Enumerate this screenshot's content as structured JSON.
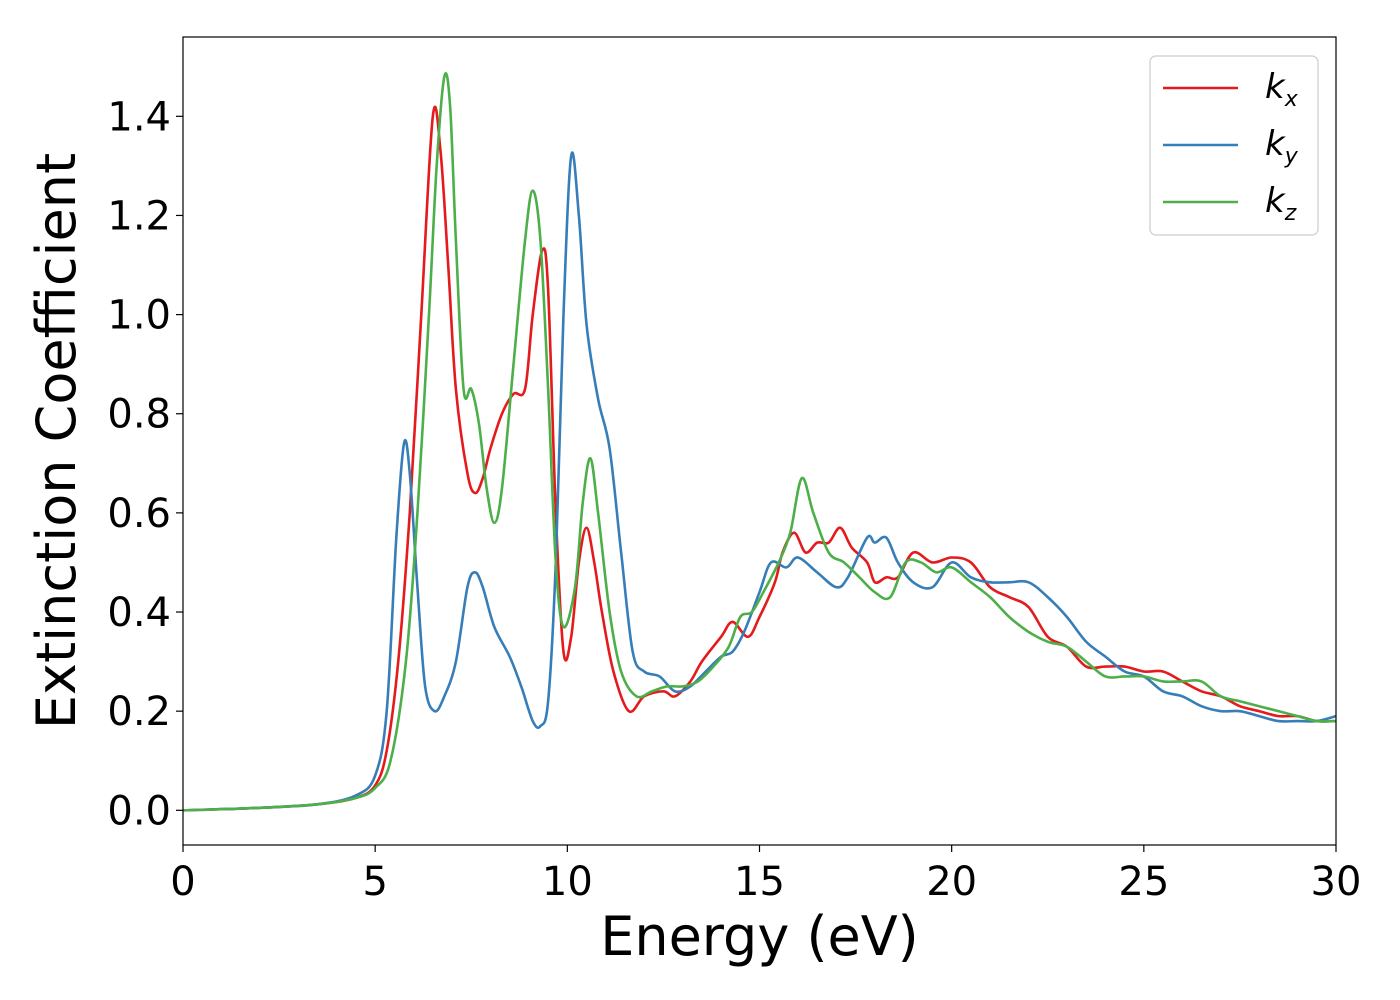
{
  "chart_data": {
    "type": "line",
    "xlabel": "Energy (eV)",
    "ylabel": "Extinction Coefficient",
    "xlim": [
      0,
      30
    ],
    "ylim": [
      -0.07,
      1.56
    ],
    "xticks": [
      0,
      5,
      10,
      15,
      20,
      25,
      30
    ],
    "xtick_labels": [
      "0",
      "5",
      "10",
      "15",
      "20",
      "25",
      "30"
    ],
    "yticks": [
      0.0,
      0.2,
      0.4,
      0.6,
      0.8,
      1.0,
      1.2,
      1.4
    ],
    "ytick_labels": [
      "0.0",
      "0.2",
      "0.4",
      "0.6",
      "0.8",
      "1.0",
      "1.2",
      "1.4"
    ],
    "grid": false,
    "legend_position": "top-right",
    "series": [
      {
        "name": "k",
        "subscript": "x",
        "color": "#e41a1c",
        "points": [
          [
            0,
            0.0
          ],
          [
            2,
            0.005
          ],
          [
            3.5,
            0.012
          ],
          [
            4.5,
            0.025
          ],
          [
            5.0,
            0.05
          ],
          [
            5.3,
            0.12
          ],
          [
            5.6,
            0.3
          ],
          [
            5.9,
            0.6
          ],
          [
            6.2,
            1.0
          ],
          [
            6.5,
            1.4
          ],
          [
            6.7,
            1.33
          ],
          [
            6.9,
            1.1
          ],
          [
            7.1,
            0.85
          ],
          [
            7.4,
            0.68
          ],
          [
            7.6,
            0.64
          ],
          [
            7.8,
            0.67
          ],
          [
            8.0,
            0.73
          ],
          [
            8.3,
            0.8
          ],
          [
            8.6,
            0.84
          ],
          [
            8.9,
            0.85
          ],
          [
            9.1,
            1.0
          ],
          [
            9.35,
            1.13
          ],
          [
            9.5,
            1.05
          ],
          [
            9.7,
            0.6
          ],
          [
            9.9,
            0.32
          ],
          [
            10.1,
            0.35
          ],
          [
            10.3,
            0.5
          ],
          [
            10.5,
            0.57
          ],
          [
            10.7,
            0.5
          ],
          [
            10.9,
            0.4
          ],
          [
            11.2,
            0.28
          ],
          [
            11.6,
            0.2
          ],
          [
            12.0,
            0.23
          ],
          [
            12.5,
            0.24
          ],
          [
            12.8,
            0.23
          ],
          [
            13.2,
            0.26
          ],
          [
            13.5,
            0.3
          ],
          [
            14.0,
            0.35
          ],
          [
            14.3,
            0.38
          ],
          [
            14.7,
            0.35
          ],
          [
            15.0,
            0.39
          ],
          [
            15.4,
            0.46
          ],
          [
            15.6,
            0.52
          ],
          [
            15.9,
            0.56
          ],
          [
            16.2,
            0.52
          ],
          [
            16.5,
            0.54
          ],
          [
            16.8,
            0.54
          ],
          [
            17.1,
            0.57
          ],
          [
            17.4,
            0.53
          ],
          [
            17.8,
            0.5
          ],
          [
            18.0,
            0.46
          ],
          [
            18.3,
            0.47
          ],
          [
            18.6,
            0.47
          ],
          [
            19.0,
            0.52
          ],
          [
            19.5,
            0.5
          ],
          [
            20.0,
            0.51
          ],
          [
            20.5,
            0.5
          ],
          [
            21.0,
            0.45
          ],
          [
            21.5,
            0.43
          ],
          [
            22.0,
            0.41
          ],
          [
            22.5,
            0.35
          ],
          [
            23.0,
            0.33
          ],
          [
            23.5,
            0.29
          ],
          [
            24.0,
            0.29
          ],
          [
            24.5,
            0.29
          ],
          [
            25.0,
            0.28
          ],
          [
            25.5,
            0.28
          ],
          [
            26.0,
            0.26
          ],
          [
            26.5,
            0.24
          ],
          [
            27.0,
            0.23
          ],
          [
            27.5,
            0.21
          ],
          [
            28.0,
            0.2
          ],
          [
            28.5,
            0.19
          ],
          [
            29.0,
            0.19
          ],
          [
            29.5,
            0.18
          ],
          [
            30.0,
            0.18
          ]
        ]
      },
      {
        "name": "k",
        "subscript": "y",
        "color": "#377eb8",
        "points": [
          [
            0,
            0.0
          ],
          [
            2,
            0.005
          ],
          [
            3.5,
            0.012
          ],
          [
            4.5,
            0.03
          ],
          [
            5.0,
            0.07
          ],
          [
            5.3,
            0.2
          ],
          [
            5.55,
            0.55
          ],
          [
            5.75,
            0.74
          ],
          [
            5.9,
            0.68
          ],
          [
            6.1,
            0.45
          ],
          [
            6.3,
            0.25
          ],
          [
            6.55,
            0.2
          ],
          [
            6.8,
            0.23
          ],
          [
            7.1,
            0.3
          ],
          [
            7.4,
            0.45
          ],
          [
            7.6,
            0.48
          ],
          [
            7.8,
            0.45
          ],
          [
            8.1,
            0.37
          ],
          [
            8.5,
            0.31
          ],
          [
            8.8,
            0.25
          ],
          [
            9.1,
            0.18
          ],
          [
            9.3,
            0.17
          ],
          [
            9.5,
            0.22
          ],
          [
            9.7,
            0.5
          ],
          [
            9.9,
            1.0
          ],
          [
            10.1,
            1.32
          ],
          [
            10.3,
            1.2
          ],
          [
            10.5,
            0.98
          ],
          [
            10.8,
            0.83
          ],
          [
            11.1,
            0.73
          ],
          [
            11.4,
            0.52
          ],
          [
            11.7,
            0.32
          ],
          [
            12.0,
            0.28
          ],
          [
            12.4,
            0.27
          ],
          [
            12.8,
            0.24
          ],
          [
            13.2,
            0.25
          ],
          [
            13.6,
            0.28
          ],
          [
            14.0,
            0.31
          ],
          [
            14.3,
            0.32
          ],
          [
            14.6,
            0.36
          ],
          [
            15.0,
            0.44
          ],
          [
            15.3,
            0.5
          ],
          [
            15.7,
            0.49
          ],
          [
            16.0,
            0.51
          ],
          [
            16.5,
            0.48
          ],
          [
            17.0,
            0.45
          ],
          [
            17.3,
            0.47
          ],
          [
            17.8,
            0.55
          ],
          [
            18.0,
            0.54
          ],
          [
            18.3,
            0.55
          ],
          [
            18.6,
            0.5
          ],
          [
            19.0,
            0.46
          ],
          [
            19.5,
            0.45
          ],
          [
            20.0,
            0.5
          ],
          [
            20.5,
            0.47
          ],
          [
            21.0,
            0.46
          ],
          [
            21.5,
            0.46
          ],
          [
            22.0,
            0.46
          ],
          [
            22.5,
            0.43
          ],
          [
            23.0,
            0.39
          ],
          [
            23.5,
            0.34
          ],
          [
            24.0,
            0.31
          ],
          [
            24.5,
            0.28
          ],
          [
            25.0,
            0.27
          ],
          [
            25.5,
            0.24
          ],
          [
            26.0,
            0.23
          ],
          [
            26.5,
            0.21
          ],
          [
            27.0,
            0.2
          ],
          [
            27.5,
            0.2
          ],
          [
            28.0,
            0.19
          ],
          [
            28.5,
            0.18
          ],
          [
            29.0,
            0.18
          ],
          [
            29.5,
            0.18
          ],
          [
            30.0,
            0.19
          ]
        ]
      },
      {
        "name": "k",
        "subscript": "z",
        "color": "#4daf4a",
        "points": [
          [
            0,
            0.0
          ],
          [
            2,
            0.005
          ],
          [
            3.5,
            0.012
          ],
          [
            4.5,
            0.025
          ],
          [
            5.0,
            0.045
          ],
          [
            5.4,
            0.1
          ],
          [
            5.8,
            0.3
          ],
          [
            6.1,
            0.6
          ],
          [
            6.4,
            1.0
          ],
          [
            6.6,
            1.3
          ],
          [
            6.8,
            1.48
          ],
          [
            6.95,
            1.42
          ],
          [
            7.1,
            1.15
          ],
          [
            7.3,
            0.85
          ],
          [
            7.5,
            0.85
          ],
          [
            7.7,
            0.78
          ],
          [
            7.9,
            0.65
          ],
          [
            8.1,
            0.58
          ],
          [
            8.3,
            0.65
          ],
          [
            8.6,
            0.9
          ],
          [
            8.9,
            1.15
          ],
          [
            9.1,
            1.25
          ],
          [
            9.3,
            1.15
          ],
          [
            9.5,
            0.85
          ],
          [
            9.7,
            0.5
          ],
          [
            9.9,
            0.37
          ],
          [
            10.2,
            0.45
          ],
          [
            10.4,
            0.62
          ],
          [
            10.6,
            0.71
          ],
          [
            10.8,
            0.6
          ],
          [
            11.1,
            0.4
          ],
          [
            11.4,
            0.28
          ],
          [
            11.8,
            0.23
          ],
          [
            12.2,
            0.24
          ],
          [
            12.6,
            0.25
          ],
          [
            13.0,
            0.25
          ],
          [
            13.4,
            0.26
          ],
          [
            13.8,
            0.29
          ],
          [
            14.2,
            0.33
          ],
          [
            14.5,
            0.39
          ],
          [
            14.8,
            0.4
          ],
          [
            15.1,
            0.44
          ],
          [
            15.5,
            0.5
          ],
          [
            15.8,
            0.56
          ],
          [
            16.1,
            0.67
          ],
          [
            16.4,
            0.6
          ],
          [
            16.8,
            0.52
          ],
          [
            17.2,
            0.5
          ],
          [
            17.6,
            0.47
          ],
          [
            18.0,
            0.44
          ],
          [
            18.4,
            0.43
          ],
          [
            18.8,
            0.5
          ],
          [
            19.2,
            0.5
          ],
          [
            19.6,
            0.48
          ],
          [
            20.0,
            0.49
          ],
          [
            20.5,
            0.46
          ],
          [
            21.0,
            0.43
          ],
          [
            21.5,
            0.39
          ],
          [
            22.0,
            0.36
          ],
          [
            22.5,
            0.34
          ],
          [
            23.0,
            0.33
          ],
          [
            23.5,
            0.3
          ],
          [
            24.0,
            0.27
          ],
          [
            24.5,
            0.27
          ],
          [
            25.0,
            0.27
          ],
          [
            25.5,
            0.26
          ],
          [
            26.0,
            0.26
          ],
          [
            26.5,
            0.26
          ],
          [
            27.0,
            0.23
          ],
          [
            27.5,
            0.22
          ],
          [
            28.0,
            0.21
          ],
          [
            28.5,
            0.2
          ],
          [
            29.0,
            0.19
          ],
          [
            29.5,
            0.18
          ],
          [
            30.0,
            0.18
          ]
        ]
      }
    ]
  }
}
